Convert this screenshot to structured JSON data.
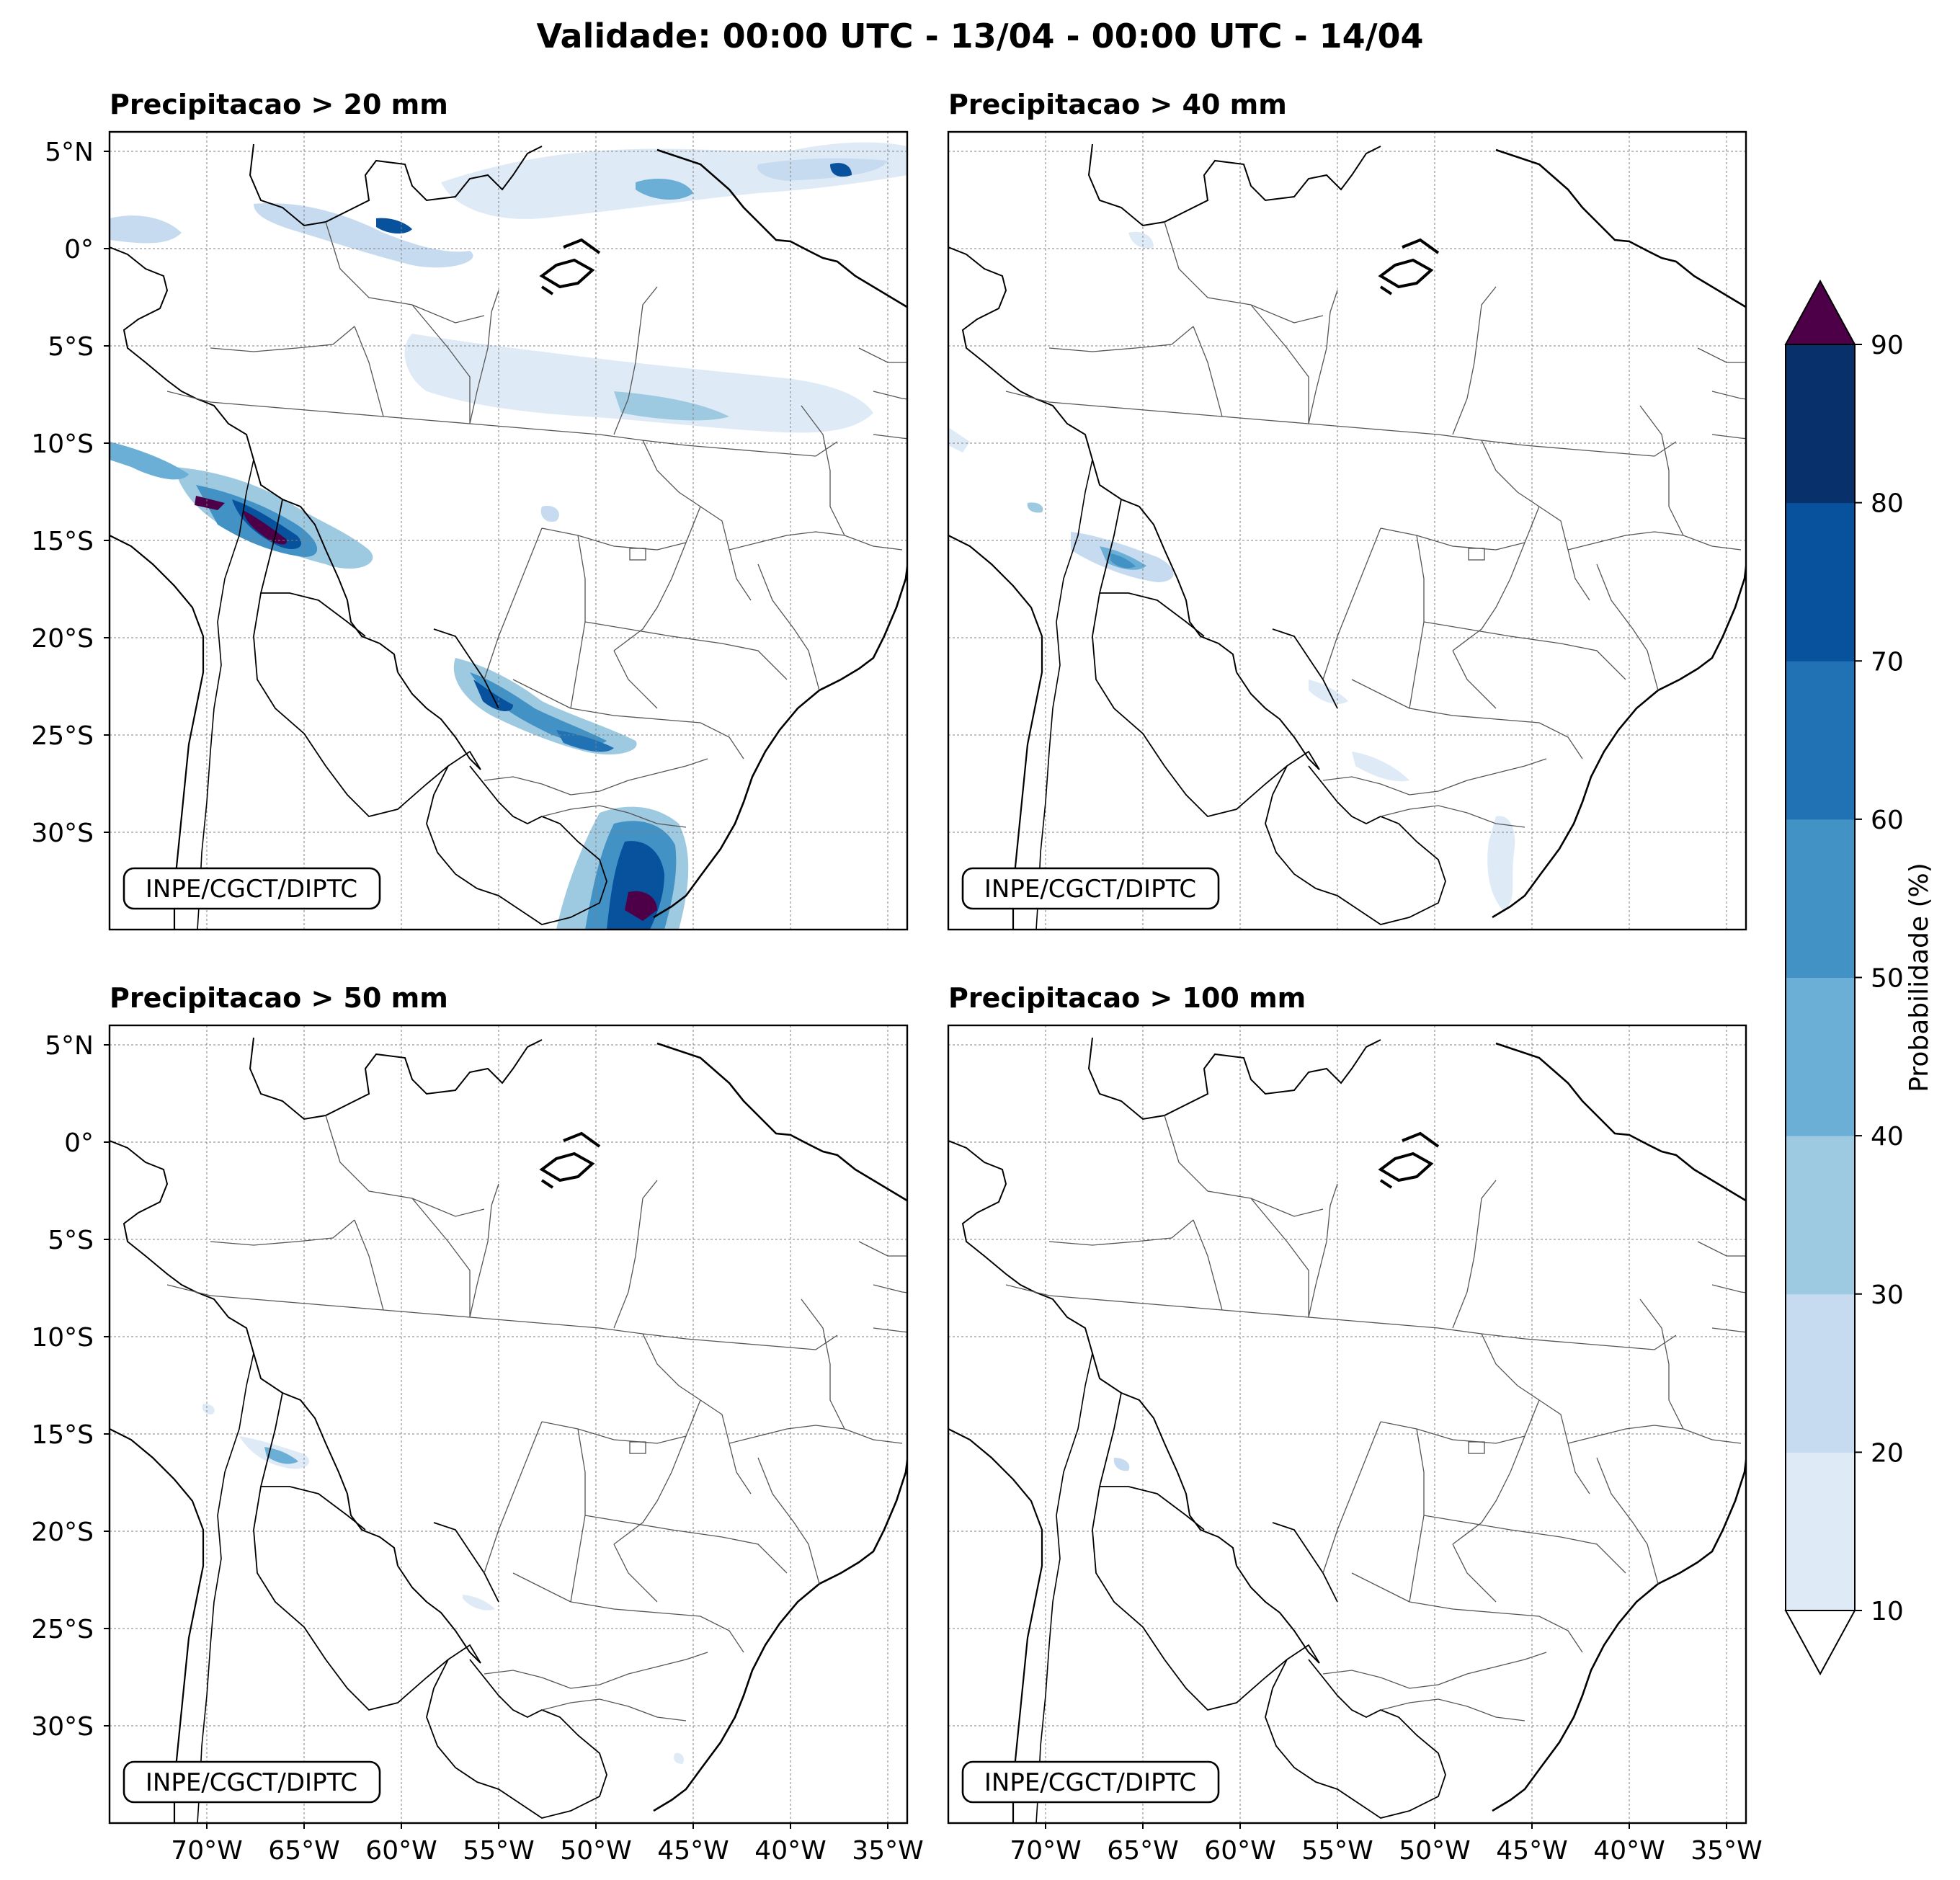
{
  "title": "Validade: 00:00 UTC - 13/04 - 00:00 UTC - 14/04",
  "credit": "INPE/CGCT/DIPTC",
  "lat_ticks": [
    "5°N",
    "0°",
    "5°S",
    "10°S",
    "15°S",
    "20°S",
    "25°S",
    "30°S"
  ],
  "lat_values": [
    5,
    0,
    -5,
    -10,
    -15,
    -20,
    -25,
    -30
  ],
  "lon_ticks": [
    "70°W",
    "65°W",
    "60°W",
    "55°W",
    "50°W",
    "45°W",
    "40°W",
    "35°W"
  ],
  "lon_values": [
    -70,
    -65,
    -60,
    -55,
    -50,
    -45,
    -40,
    -35
  ],
  "extent": {
    "lon": [
      -75,
      -34
    ],
    "lat": [
      -35,
      6
    ]
  },
  "panels": [
    {
      "title": "Precipitacao > 20 mm"
    },
    {
      "title": "Precipitacao > 40 mm"
    },
    {
      "title": "Precipitacao > 50 mm"
    },
    {
      "title": "Precipitacao > 100 mm"
    }
  ],
  "colorbar": {
    "label": "Probabilidade (%)",
    "ticks": [
      "10",
      "20",
      "30",
      "40",
      "50",
      "60",
      "70",
      "80",
      "90"
    ],
    "colors": [
      "#deebf7",
      "#c6dbef",
      "#9ecae1",
      "#6baed6",
      "#4292c6",
      "#2171b5",
      "#08519c",
      "#08306b"
    ],
    "over_color": "#4d0047",
    "under_color": "#ffffff"
  }
}
